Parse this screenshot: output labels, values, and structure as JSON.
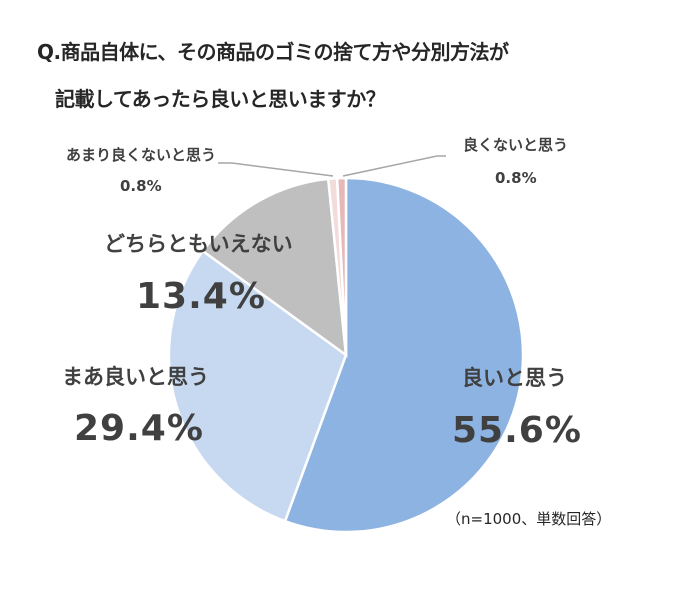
{
  "title": {
    "line1": "Q.商品自体に、その商品のゴミの捨て方や分別方法が",
    "line2": "記載してあったら良いと思いますか？"
  },
  "note": "（n=1000、単数回答）",
  "labels": {
    "good": {
      "name": "良いと思う",
      "value": "55.6%"
    },
    "fairly_good": {
      "name": "まあ良いと思う",
      "value": "29.4%"
    },
    "neutral": {
      "name": "どちらともいえない",
      "value": "13.4%"
    },
    "fairly_bad": {
      "name": "あまり良くないと思う",
      "value": "0.8%"
    },
    "bad": {
      "name": "良くないと思う",
      "value": "0.8%"
    }
  },
  "colors": {
    "good": "#8DB3E2",
    "fairly_good": "#C6D9F1",
    "neutral": "#BFBFBF",
    "fairly_bad": "#F2DCDB",
    "bad": "#E6B9B8",
    "leader": "#A6A6A6"
  },
  "chart_data": {
    "type": "pie",
    "title": "Q.商品自体に、その商品のゴミの捨て方や分別方法が記載してあったら良いと思いますか？",
    "categories": [
      "良いと思う",
      "まあ良いと思う",
      "どちらともいえない",
      "あまり良くないと思う",
      "良くないと思う"
    ],
    "values": [
      55.6,
      29.4,
      13.4,
      0.8,
      0.8
    ],
    "unit": "%",
    "start_angle": "12 o'clock, clockwise",
    "annotation": "（n=1000、単数回答）",
    "legend": "none (data labels on/near slices)"
  }
}
